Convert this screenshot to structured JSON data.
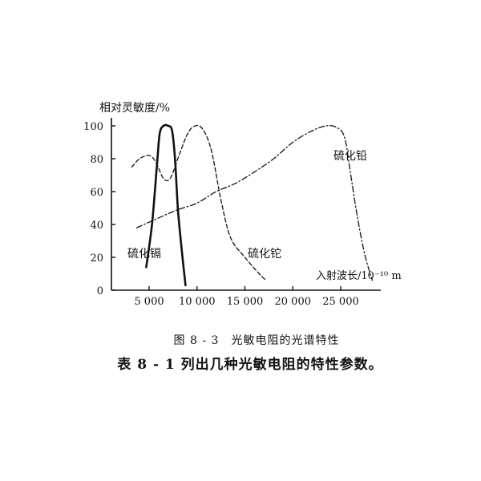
{
  "figure_caption": "图 8 - 3　光敏电阻的光谱特性",
  "table_note": "表 8 - 1 列出几种光敏电阻的特性参数。",
  "chart_data": {
    "type": "line",
    "ylabel": "相对灵敏度/%",
    "xlabel": "入射波长/10⁻¹⁰ m",
    "x_ticks": [
      5000,
      10000,
      15000,
      20000,
      25000
    ],
    "x_tick_labels": [
      "5 000",
      "10 000",
      "15 000",
      "20 000",
      "25 000"
    ],
    "y_ticks": [
      0,
      20,
      40,
      60,
      80,
      100
    ],
    "y_tick_labels": [
      "0",
      "20",
      "40",
      "60",
      "80",
      "100"
    ],
    "xlim": [
      0,
      30000
    ],
    "ylim": [
      0,
      100
    ],
    "grid": false,
    "legend": "inline labels",
    "series": [
      {
        "name": "硫化镉",
        "style": "solid",
        "points": [
          [
            4700,
            14
          ],
          [
            5300,
            40
          ],
          [
            5800,
            75
          ],
          [
            6100,
            95
          ],
          [
            6500,
            100
          ],
          [
            7000,
            100
          ],
          [
            7400,
            97
          ],
          [
            7700,
            80
          ],
          [
            8000,
            50
          ],
          [
            8400,
            25
          ],
          [
            8800,
            3
          ]
        ]
      },
      {
        "name": "硫化铊",
        "style": "dashed",
        "points": [
          [
            3200,
            75
          ],
          [
            4000,
            80
          ],
          [
            5000,
            82
          ],
          [
            5700,
            78
          ],
          [
            6500,
            68
          ],
          [
            7200,
            68
          ],
          [
            8000,
            80
          ],
          [
            9000,
            95
          ],
          [
            9800,
            100
          ],
          [
            10600,
            98
          ],
          [
            11500,
            85
          ],
          [
            12500,
            55
          ],
          [
            13500,
            32
          ],
          [
            15000,
            20
          ],
          [
            16500,
            10
          ],
          [
            17200,
            6
          ]
        ]
      },
      {
        "name": "硫化铅",
        "style": "dashdot",
        "points": [
          [
            3700,
            38
          ],
          [
            6000,
            44
          ],
          [
            8000,
            49
          ],
          [
            10000,
            53
          ],
          [
            12000,
            60
          ],
          [
            14000,
            65
          ],
          [
            16000,
            72
          ],
          [
            18000,
            80
          ],
          [
            20000,
            90
          ],
          [
            22000,
            97
          ],
          [
            23500,
            100
          ],
          [
            24600,
            99
          ],
          [
            25400,
            93
          ],
          [
            26000,
            72
          ],
          [
            26700,
            46
          ],
          [
            27500,
            22
          ],
          [
            28300,
            6
          ]
        ]
      }
    ]
  }
}
